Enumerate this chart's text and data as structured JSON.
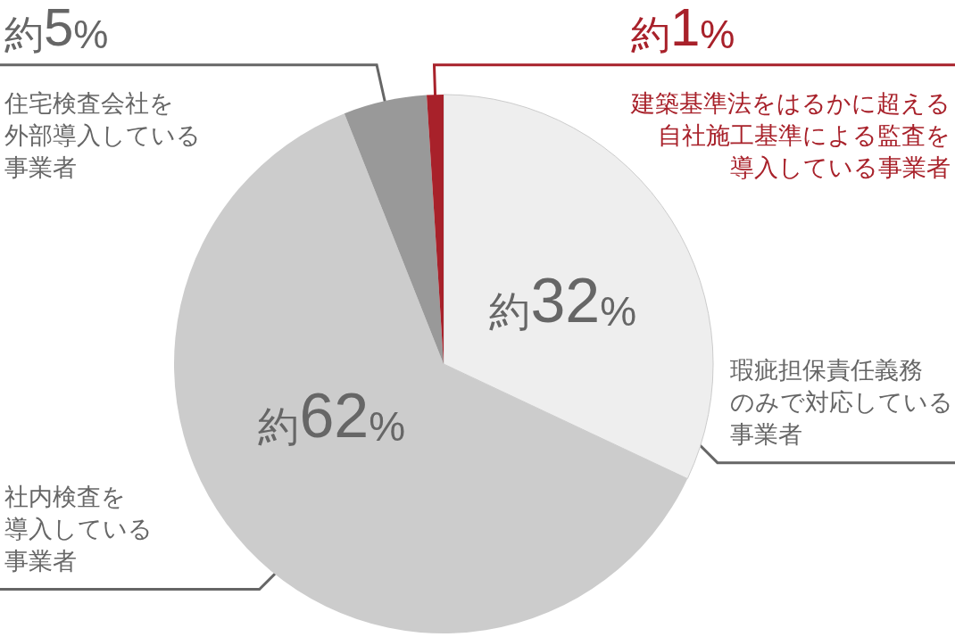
{
  "chart_data": {
    "type": "pie",
    "categories": [
      "瑕疵担保責任義務のみで対応している事業者",
      "社内検査を導入している事業者",
      "住宅検査会社を外部導入している事業者",
      "建築基準法をはるかに超える自社施工基準による監査を導入している事業者"
    ],
    "values": [
      32,
      62,
      5,
      1
    ],
    "colors": [
      "#eeeeee",
      "#cccccc",
      "#999999",
      "#a8212a"
    ],
    "value_labels": [
      "約32%",
      "約62%",
      "約5%",
      "約1%"
    ]
  }
}
